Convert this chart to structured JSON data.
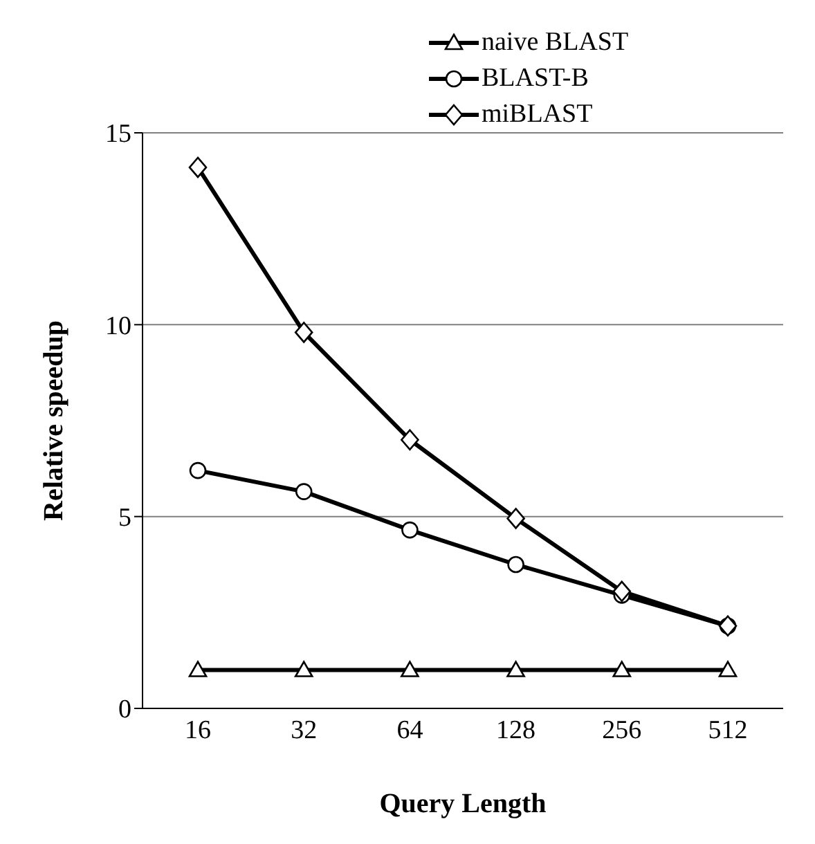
{
  "chart_data": {
    "type": "line",
    "xlabel": "Query Length",
    "ylabel": "Relative speedup",
    "categories": [
      "16",
      "32",
      "64",
      "128",
      "256",
      "512"
    ],
    "series": [
      {
        "name": "naive BLAST",
        "color": "#000000",
        "marker": "triangle",
        "values": [
          1,
          1,
          1,
          1,
          1,
          1
        ]
      },
      {
        "name": "BLAST-B",
        "color": "#000000",
        "marker": "circle",
        "values": [
          6.2,
          5.65,
          4.65,
          3.75,
          2.95,
          2.15
        ]
      },
      {
        "name": "miBLAST",
        "color": "#000000",
        "marker": "diamond",
        "values": [
          14.1,
          9.8,
          7.0,
          4.95,
          3.05,
          2.15
        ]
      }
    ],
    "ylim": [
      0,
      15
    ],
    "yticks": [
      0,
      5,
      10,
      15
    ],
    "grid": "y",
    "legend": "top",
    "line_style": "solid"
  }
}
